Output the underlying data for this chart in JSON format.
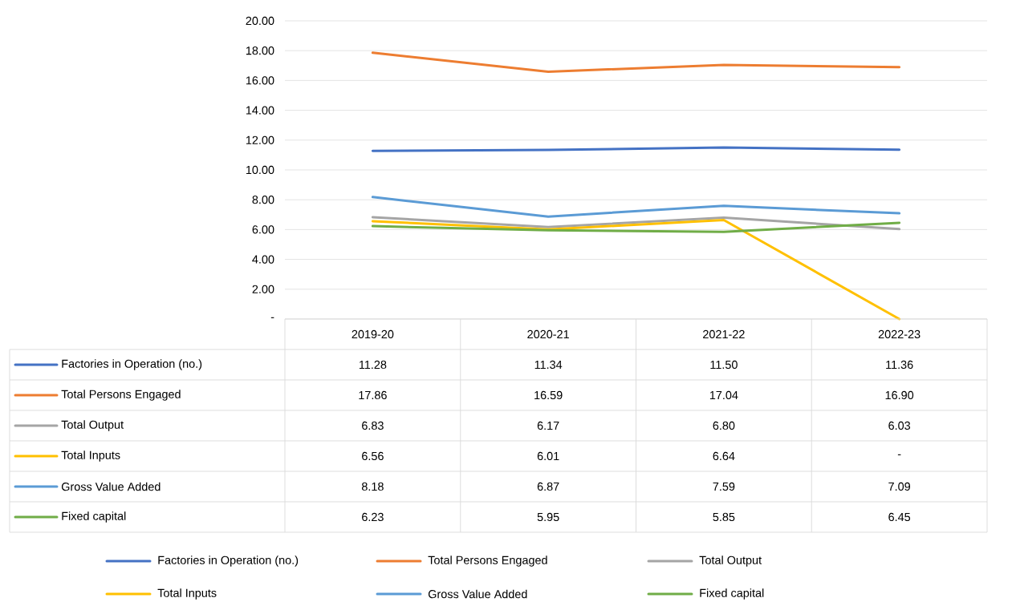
{
  "chart_data": {
    "type": "line",
    "categories": [
      "2019-20",
      "2020-21",
      "2021-22",
      "2022-23"
    ],
    "series": [
      {
        "name": "Factories in Operation (no.)",
        "color": "#4472c4",
        "values": [
          11.28,
          11.34,
          11.5,
          11.36
        ],
        "value_labels": [
          "11.28",
          "11.34",
          "11.50",
          "11.36"
        ]
      },
      {
        "name": "Total Persons Engaged",
        "color": "#ed7d31",
        "values": [
          17.86,
          16.59,
          17.04,
          16.9
        ],
        "value_labels": [
          "17.86",
          "16.59",
          "17.04",
          "16.90"
        ]
      },
      {
        "name": "Total Output",
        "color": "#a5a5a5",
        "values": [
          6.83,
          6.17,
          6.8,
          6.03
        ],
        "value_labels": [
          "6.83",
          "6.17",
          "6.80",
          "6.03"
        ]
      },
      {
        "name": "Total Inputs",
        "color": "#ffc000",
        "values": [
          6.56,
          6.01,
          6.64,
          0
        ],
        "value_labels": [
          "6.56",
          "6.01",
          "6.64",
          null
        ]
      },
      {
        "name": "Gross Value Added",
        "color": "#5b9bd5",
        "values": [
          8.18,
          6.87,
          7.59,
          7.09
        ],
        "value_labels": [
          "8.18",
          "6.87",
          "7.59",
          "7.09"
        ]
      },
      {
        "name": "Fixed capital",
        "color": "#70ad47",
        "values": [
          6.23,
          5.95,
          5.85,
          6.45
        ],
        "value_labels": [
          "6.23",
          "5.95",
          "5.85",
          "6.45"
        ]
      }
    ],
    "ylim": [
      0,
      20
    ],
    "yticks": [
      {
        "value": 0,
        "label": "-"
      },
      {
        "value": 2,
        "label": "2.00"
      },
      {
        "value": 4,
        "label": "4.00"
      },
      {
        "value": 6,
        "label": "6.00"
      },
      {
        "value": 8,
        "label": "8.00"
      },
      {
        "value": 10,
        "label": "10.00"
      },
      {
        "value": 12,
        "label": "12.00"
      },
      {
        "value": 14,
        "label": "14.00"
      },
      {
        "value": 16,
        "label": "16.00"
      },
      {
        "value": 18,
        "label": "18.00"
      },
      {
        "value": 20,
        "label": "20.00"
      }
    ],
    "annotations": [
      "-"
    ],
    "grid": "y",
    "legend": "bottom"
  }
}
